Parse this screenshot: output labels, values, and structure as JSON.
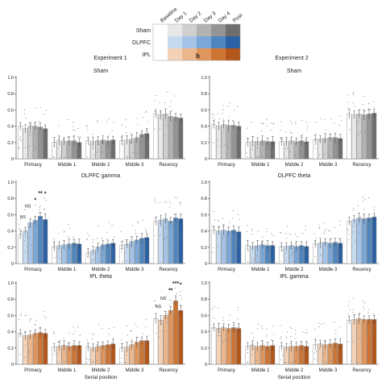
{
  "legend": {
    "rows": [
      "Sham",
      "DLPFC",
      "IPL"
    ],
    "columns": [
      "Baseline",
      "Day 1",
      "Day 2",
      "Day 3",
      "Day 4",
      "Post"
    ],
    "colors": {
      "Sham": [
        "#ffffff",
        "#e8e8e8",
        "#cfcfcf",
        "#b2b2b2",
        "#959595",
        "#6e6e6e"
      ],
      "DLPFC": [
        "#ffffff",
        "#c6daf0",
        "#a4c3e6",
        "#7aa7d7",
        "#4f86c0",
        "#2c62a3"
      ],
      "IPL": [
        "#ffffff",
        "#f3d2b8",
        "#ebb68c",
        "#e0955c",
        "#cf7533",
        "#b3561b"
      ]
    }
  },
  "headers": {
    "exp1": "Experiment 1",
    "exp2": "Experiment 2",
    "panel_b": "b"
  },
  "chart_data": [
    {
      "type": "bar",
      "experiment": "Experiment 1",
      "title": "Sham",
      "condition": "Sham",
      "ylim": [
        0,
        1.0
      ],
      "yticks": [
        "0",
        "0.2",
        "0.4",
        "0.6",
        "0.8",
        "1.0"
      ],
      "categories": [
        "Primacy",
        "Middle 1",
        "Middle 2",
        "Middle 3",
        "Recency"
      ],
      "days": [
        "Baseline",
        "Day 1",
        "Day 2",
        "Day 3",
        "Day 4",
        "Post"
      ],
      "values": [
        [
          0.4,
          0.37,
          0.4,
          0.4,
          0.39,
          0.37
        ],
        [
          0.2,
          0.22,
          0.21,
          0.22,
          0.22,
          0.2
        ],
        [
          0.22,
          0.21,
          0.22,
          0.23,
          0.22,
          0.23
        ],
        [
          0.22,
          0.23,
          0.24,
          0.26,
          0.3,
          0.31
        ],
        [
          0.55,
          0.54,
          0.55,
          0.52,
          0.51,
          0.5
        ]
      ],
      "xlabel": "",
      "annotations": []
    },
    {
      "type": "bar",
      "experiment": "Experiment 1",
      "title": "DLPFC gamma",
      "condition": "DLPFC",
      "ylim": [
        0,
        1.0
      ],
      "yticks": [
        "0",
        "0.2",
        "0.4",
        "0.6",
        "0.8",
        "1.0"
      ],
      "categories": [
        "Primacy",
        "Middle 1",
        "Middle 2",
        "Middle 3",
        "Recency"
      ],
      "days": [
        "Baseline",
        "Day 1",
        "Day 2",
        "Day 3",
        "Day 4",
        "Post"
      ],
      "values": [
        [
          0.36,
          0.4,
          0.5,
          0.53,
          0.58,
          0.54
        ],
        [
          0.21,
          0.22,
          0.23,
          0.24,
          0.25,
          0.24
        ],
        [
          0.13,
          0.16,
          0.2,
          0.23,
          0.24,
          0.25
        ],
        [
          0.22,
          0.24,
          0.27,
          0.29,
          0.31,
          0.32
        ],
        [
          0.52,
          0.53,
          0.55,
          0.52,
          0.56,
          0.55
        ]
      ],
      "xlabel": "",
      "annotations": [
        {
          "category": 0,
          "day": 1,
          "text": "NS"
        },
        {
          "category": 0,
          "day": 2,
          "text": "NS"
        },
        {
          "category": 0,
          "day": 3,
          "text": "*"
        },
        {
          "category": 0,
          "day": 4,
          "text": "**"
        },
        {
          "category": 0,
          "day": 5,
          "text": "*"
        }
      ]
    },
    {
      "type": "bar",
      "experiment": "Experiment 1",
      "title": "IPL theta",
      "condition": "IPL",
      "ylim": [
        0,
        1.0
      ],
      "yticks": [
        "0",
        "0.2",
        "0.4",
        "0.6",
        "0.8",
        "1.0"
      ],
      "categories": [
        "Primacy",
        "Middle 1",
        "Middle 2",
        "Middle 3",
        "Recency"
      ],
      "days": [
        "Baseline",
        "Day 1",
        "Day 2",
        "Day 3",
        "Day 4",
        "Post"
      ],
      "values": [
        [
          0.38,
          0.35,
          0.36,
          0.38,
          0.39,
          0.38
        ],
        [
          0.21,
          0.22,
          0.23,
          0.22,
          0.23,
          0.23
        ],
        [
          0.21,
          0.2,
          0.22,
          0.23,
          0.24,
          0.25
        ],
        [
          0.2,
          0.21,
          0.24,
          0.27,
          0.29,
          0.29
        ],
        [
          0.56,
          0.54,
          0.6,
          0.66,
          0.78,
          0.66
        ]
      ],
      "xlabel": "Serial position",
      "annotations": [
        {
          "category": 4,
          "day": 1,
          "text": "NS"
        },
        {
          "category": 4,
          "day": 2,
          "text": "NS"
        },
        {
          "category": 4,
          "day": 3,
          "text": "**"
        },
        {
          "category": 4,
          "day": 4,
          "text": "***"
        },
        {
          "category": 4,
          "day": 5,
          "text": "*"
        }
      ]
    },
    {
      "type": "bar",
      "experiment": "Experiment 2",
      "title": "Sham",
      "condition": "Sham",
      "ylim": [
        0,
        1.0
      ],
      "yticks": [
        "0",
        "0.2",
        "0.4",
        "0.6",
        "0.8",
        "1.0"
      ],
      "categories": [
        "Primacy",
        "Middle 1",
        "Middle 2",
        "Middle 3",
        "Recency"
      ],
      "days": [
        "Baseline",
        "Day 1",
        "Day 2",
        "Day 3",
        "Day 4",
        "Post"
      ],
      "values": [
        [
          0.42,
          0.4,
          0.42,
          0.41,
          0.41,
          0.4
        ],
        [
          0.2,
          0.21,
          0.21,
          0.22,
          0.21,
          0.21
        ],
        [
          0.21,
          0.21,
          0.22,
          0.21,
          0.22,
          0.21
        ],
        [
          0.23,
          0.24,
          0.25,
          0.26,
          0.26,
          0.25
        ],
        [
          0.55,
          0.54,
          0.55,
          0.54,
          0.55,
          0.56
        ]
      ],
      "xlabel": "",
      "annotations": []
    },
    {
      "type": "bar",
      "experiment": "Experiment 2",
      "title": "DLPFC theta",
      "condition": "DLPFC",
      "ylim": [
        0,
        1.0
      ],
      "yticks": [
        "0",
        "0.2",
        "0.4",
        "0.6",
        "0.8",
        "1.0"
      ],
      "categories": [
        "Primacy",
        "Middle 1",
        "Middle 2",
        "Middle 3",
        "Recency"
      ],
      "days": [
        "Baseline",
        "Day 1",
        "Day 2",
        "Day 3",
        "Day 4",
        "Post"
      ],
      "values": [
        [
          0.41,
          0.4,
          0.41,
          0.4,
          0.41,
          0.39
        ],
        [
          0.22,
          0.21,
          0.22,
          0.23,
          0.22,
          0.22
        ],
        [
          0.2,
          0.21,
          0.22,
          0.21,
          0.22,
          0.21
        ],
        [
          0.24,
          0.25,
          0.26,
          0.25,
          0.26,
          0.25
        ],
        [
          0.52,
          0.54,
          0.56,
          0.55,
          0.56,
          0.57
        ]
      ],
      "xlabel": "",
      "annotations": []
    },
    {
      "type": "bar",
      "experiment": "Experiment 2",
      "title": "IPL gamma",
      "condition": "IPL",
      "ylim": [
        0,
        1.0
      ],
      "yticks": [
        "0",
        "0.2",
        "0.4",
        "0.6",
        "0.8",
        "1.0"
      ],
      "categories": [
        "Primacy",
        "Middle 1",
        "Middle 2",
        "Middle 3",
        "Recency"
      ],
      "days": [
        "Baseline",
        "Day 1",
        "Day 2",
        "Day 3",
        "Day 4",
        "Post"
      ],
      "values": [
        [
          0.45,
          0.44,
          0.45,
          0.44,
          0.45,
          0.44
        ],
        [
          0.22,
          0.23,
          0.22,
          0.23,
          0.22,
          0.23
        ],
        [
          0.22,
          0.21,
          0.22,
          0.22,
          0.23,
          0.22
        ],
        [
          0.24,
          0.25,
          0.24,
          0.25,
          0.26,
          0.25
        ],
        [
          0.54,
          0.55,
          0.56,
          0.55,
          0.55,
          0.55
        ]
      ],
      "xlabel": "Serial position",
      "annotations": []
    }
  ]
}
